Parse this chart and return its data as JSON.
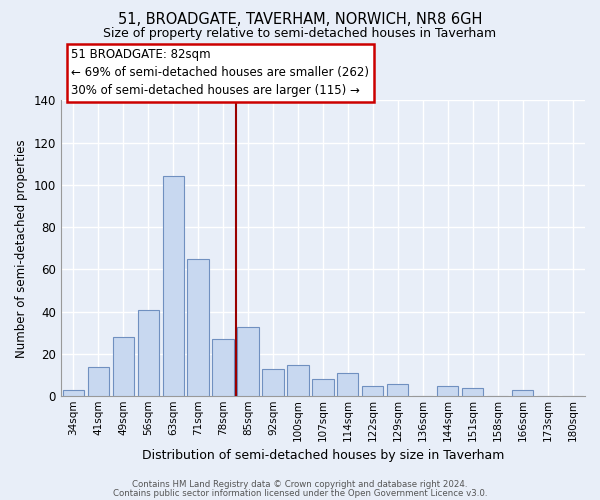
{
  "title": "51, BROADGATE, TAVERHAM, NORWICH, NR8 6GH",
  "subtitle": "Size of property relative to semi-detached houses in Taverham",
  "xlabel": "Distribution of semi-detached houses by size in Taverham",
  "ylabel": "Number of semi-detached properties",
  "bar_color": "#c8d8f0",
  "bar_edge_color": "#7090c0",
  "categories": [
    "34sqm",
    "41sqm",
    "49sqm",
    "56sqm",
    "63sqm",
    "71sqm",
    "78sqm",
    "85sqm",
    "92sqm",
    "100sqm",
    "107sqm",
    "114sqm",
    "122sqm",
    "129sqm",
    "136sqm",
    "144sqm",
    "151sqm",
    "158sqm",
    "166sqm",
    "173sqm",
    "180sqm"
  ],
  "values": [
    3,
    14,
    28,
    41,
    104,
    65,
    27,
    33,
    13,
    15,
    8,
    11,
    5,
    6,
    0,
    5,
    4,
    0,
    3,
    0,
    0
  ],
  "ylim": [
    0,
    140
  ],
  "yticks": [
    0,
    20,
    40,
    60,
    80,
    100,
    120,
    140
  ],
  "annotation_line1": "51 BROADGATE: 82sqm",
  "annotation_line2": "← 69% of semi-detached houses are smaller (262)",
  "annotation_line3": "30% of semi-detached houses are larger (115) →",
  "vline_x": 6.5,
  "footer1": "Contains HM Land Registry data © Crown copyright and database right 2024.",
  "footer2": "Contains public sector information licensed under the Open Government Licence v3.0.",
  "background_color": "#e8eef8",
  "grid_color": "#ffffff",
  "title_fontsize": 10.5,
  "subtitle_fontsize": 9,
  "vline_color": "#990000",
  "annotation_box_color": "#cc0000"
}
